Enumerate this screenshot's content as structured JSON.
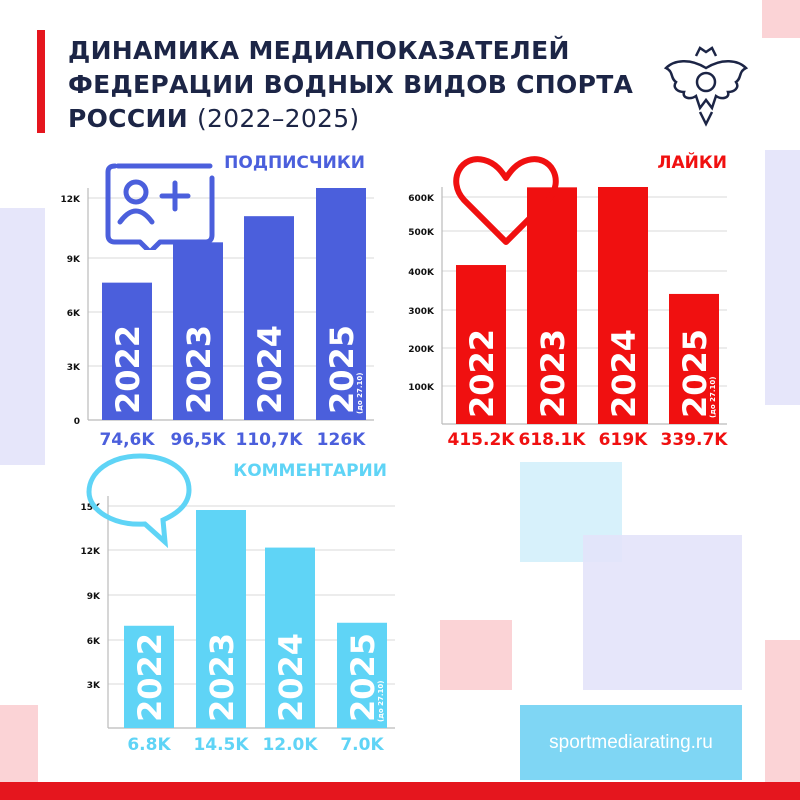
{
  "header": {
    "title_lines": [
      "ДИНАМИКА МЕДИАПОКАЗАТЕЛЕЙ",
      "ФЕДЕРАЦИИ ВОДНЫХ ВИДОВ СПОРТА",
      "РОССИИ"
    ],
    "years": "(2022–2025)"
  },
  "footer": {
    "site": "sportmediarating.ru"
  },
  "colors": {
    "accent_red": "#e5161e",
    "blue": "#4b5fdc",
    "red": "#f01010",
    "cyan": "#5fd4f6",
    "navy": "#1c2546"
  },
  "icons": [
    "user-plus-chat-icon",
    "heart-icon",
    "speech-bubble-icon",
    "emblem-logo"
  ],
  "chart_data": [
    {
      "type": "bar",
      "title": "ПОДПИСЧИКИ",
      "categories": [
        "2022",
        "2023",
        "2024",
        "2025"
      ],
      "category_notes": [
        "",
        "",
        "",
        "(до 27.10)"
      ],
      "values": [
        74.6,
        96.5,
        110.7,
        126
      ],
      "value_labels": [
        "74,6K",
        "96,5K",
        "110,7K",
        "126K"
      ],
      "yticks": [
        "0",
        "3K",
        "6K",
        "9K",
        "12K"
      ],
      "grid": true,
      "color": "#4b5fdc"
    },
    {
      "type": "bar",
      "title": "ЛАЙКИ",
      "categories": [
        "2022",
        "2023",
        "2024",
        "2025"
      ],
      "category_notes": [
        "",
        "",
        "",
        "(до 27.10)"
      ],
      "values": [
        415.2,
        618.1,
        619,
        339.7
      ],
      "value_labels": [
        "415.2K",
        "618.1K",
        "619K",
        "339.7K"
      ],
      "yticks": [
        "100K",
        "200K",
        "300K",
        "400K",
        "500K",
        "600K"
      ],
      "grid": true,
      "color": "#f01010"
    },
    {
      "type": "bar",
      "title": "КОММЕНТАРИИ",
      "categories": [
        "2022",
        "2023",
        "2024",
        "2025"
      ],
      "category_notes": [
        "",
        "",
        "",
        "(до 27.10)"
      ],
      "values": [
        6.8,
        14.5,
        12.0,
        7.0
      ],
      "value_labels": [
        "6.8K",
        "14.5K",
        "12.0K",
        "7.0K"
      ],
      "yticks": [
        "3K",
        "6K",
        "9K",
        "12K",
        "15K"
      ],
      "grid": true,
      "color": "#5fd4f6"
    }
  ]
}
